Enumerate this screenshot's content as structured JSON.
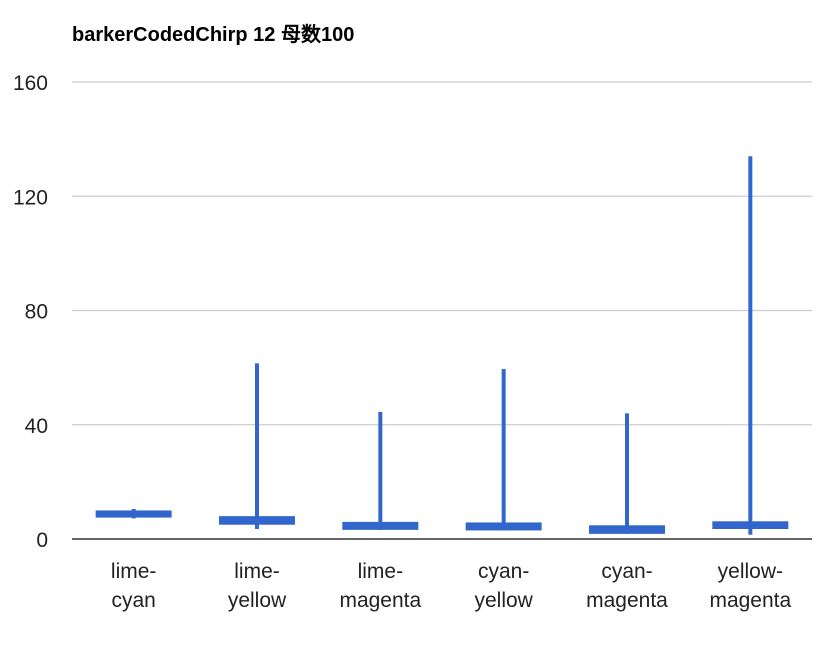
{
  "chart_data": {
    "type": "candlestick",
    "title": "barkerCodedChirp 12 母数100",
    "xlabel": "",
    "ylabel": "",
    "categories": [
      [
        "lime-",
        "cyan"
      ],
      [
        "lime-",
        "yellow"
      ],
      [
        "lime-",
        "magenta"
      ],
      [
        "cyan-",
        "yellow"
      ],
      [
        "cyan-",
        "magenta"
      ],
      [
        "yellow-",
        "magenta"
      ]
    ],
    "series": [
      {
        "low": [
          7.2,
          3.5,
          3.2,
          3.0,
          1.8,
          1.5
        ],
        "open": [
          7.5,
          5.0,
          3.2,
          3.0,
          1.8,
          3.5
        ],
        "close": [
          10.0,
          8.0,
          6.0,
          5.8,
          4.8,
          6.2
        ],
        "high": [
          10.5,
          61.5,
          44.5,
          59.5,
          44.0,
          134.0
        ]
      }
    ],
    "ylim": [
      0,
      160
    ],
    "yticks": [
      0,
      40,
      80,
      120,
      160
    ],
    "grid": true,
    "legend": "none",
    "colors": {
      "series": "#3366cc",
      "grid": "#cccccc",
      "baseline": "#333333",
      "text": "#222222"
    }
  }
}
